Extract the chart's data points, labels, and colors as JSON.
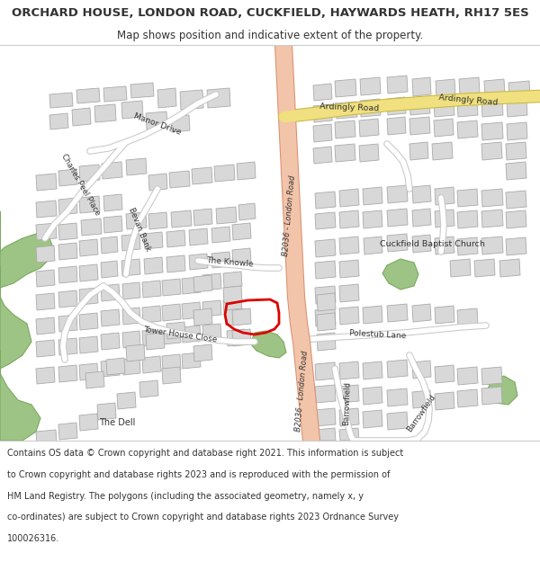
{
  "title": "ORCHARD HOUSE, LONDON ROAD, CUCKFIELD, HAYWARDS HEATH, RH17 5ES",
  "subtitle": "Map shows position and indicative extent of the property.",
  "footer_lines": [
    "Contains OS data © Crown copyright and database right 2021. This information is subject",
    "to Crown copyright and database rights 2023 and is reproduced with the permission of",
    "HM Land Registry. The polygons (including the associated geometry, namely x, y",
    "co-ordinates) are subject to Crown copyright and database rights 2023 Ordnance Survey",
    "100026316."
  ],
  "bg_color": "#ffffff",
  "map_bg": "#ffffff",
  "road_main_color": "#f2c4aa",
  "road_main_stroke": "#d99070",
  "road_yellow_color": "#f0e080",
  "road_yellow_stroke": "#c8b840",
  "road_minor_color": "#ffffff",
  "road_minor_stroke": "#c8c8c8",
  "building_fill": "#d8d8d8",
  "building_stroke": "#aaaaaa",
  "green_fill": "#9dc484",
  "green_stroke": "#7aaa60",
  "text_color": "#333333",
  "plot_outline_color": "#dd0000",
  "title_fontsize": 9.5,
  "subtitle_fontsize": 8.5,
  "footer_fontsize": 7.0,
  "label_fontsize": 6.5
}
